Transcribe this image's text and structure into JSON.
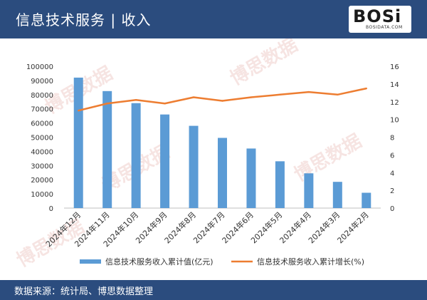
{
  "header": {
    "title": "信息技术服务 | 收入"
  },
  "logo": {
    "word": "BOSi",
    "sub": "BOSIDATA.COM"
  },
  "watermark": "博思数据",
  "footer": {
    "source": "数据来源：统计局、博思数据整理"
  },
  "colors": {
    "bar": "#5b9bd5",
    "line": "#ed7d31",
    "header": "#2b4c7e"
  },
  "chart_data": {
    "type": "bar",
    "categories": [
      "2024年12月",
      "2024年11月",
      "2024年10月",
      "2024年9月",
      "2024年8月",
      "2024年7月",
      "2024年6月",
      "2024年5月",
      "2024年4月",
      "2024年3月",
      "2024年2月"
    ],
    "series": [
      {
        "name": "信息技术服务收入累计值(亿元)",
        "type": "bar",
        "axis": "left",
        "values": [
          92000,
          82500,
          74000,
          66000,
          58000,
          49500,
          42000,
          33000,
          24500,
          18500,
          10800
        ]
      },
      {
        "name": "信息技术服务收入累计增长(%)",
        "type": "line",
        "axis": "right",
        "values": [
          11.0,
          11.8,
          12.2,
          11.8,
          12.5,
          12.1,
          12.5,
          12.8,
          13.1,
          12.8,
          13.5
        ]
      }
    ],
    "ylim_left": [
      0,
      100000
    ],
    "yticks_left": [
      "0",
      "10000",
      "20000",
      "30000",
      "40000",
      "50000",
      "60000",
      "70000",
      "80000",
      "90000",
      "100000"
    ],
    "ylim_right": [
      0,
      16
    ],
    "yticks_right": [
      "0",
      "2",
      "4",
      "6",
      "8",
      "10",
      "12",
      "14",
      "16"
    ],
    "grid": false,
    "legend": "bottom"
  }
}
